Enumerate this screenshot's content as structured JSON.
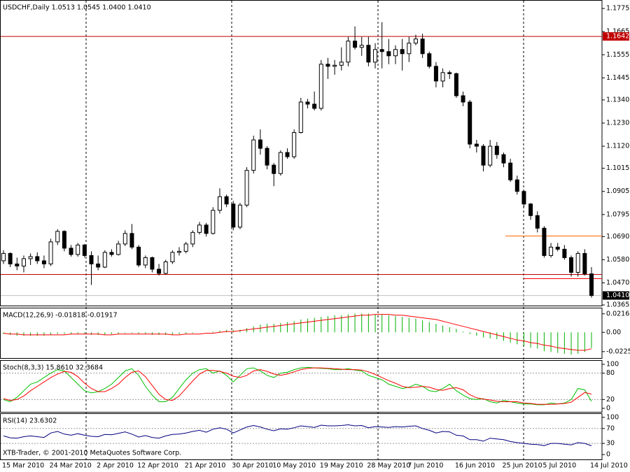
{
  "chart_data": [
    {
      "type": "candlestick",
      "title": "USDCHF,Daily 1.0513 1.0545 1.0400 1.0410",
      "categories": [
        "15 Mar 2010",
        null,
        null,
        null,
        null,
        null,
        null,
        "24 Mar 2010",
        null,
        null,
        null,
        null,
        null,
        null,
        "2 Apr 2010",
        null,
        null,
        null,
        null,
        null,
        "12 Apr 2010",
        null,
        null,
        null,
        null,
        null,
        null,
        "21 Apr 2010",
        null,
        null,
        null,
        null,
        null,
        null,
        "30 Apr 2010",
        null,
        null,
        null,
        null,
        null,
        "10 May 2010",
        null,
        null,
        null,
        null,
        null,
        null,
        "19 May 2010",
        null,
        null,
        null,
        null,
        null,
        null,
        "28 May 2010",
        null,
        null,
        null,
        null,
        null,
        "7 Jun 2010",
        null,
        null,
        null,
        null,
        null,
        null,
        "16 Jun 2010",
        null,
        null,
        null,
        null,
        null,
        null,
        "25 Jun 2010",
        null,
        null,
        null,
        null,
        null,
        "5 Jul 2010",
        null,
        null,
        null,
        null,
        null,
        null,
        "14 Jul 2010"
      ],
      "open": [
        1.0575,
        1.061,
        1.056,
        1.055,
        1.0585,
        1.0595,
        1.0575,
        1.056,
        1.0665,
        1.0715,
        1.0635,
        1.0605,
        1.065,
        1.06,
        1.056,
        1.0545,
        1.0615,
        1.0605,
        1.0655,
        1.0705,
        1.064,
        1.0555,
        1.059,
        1.0535,
        1.0515,
        1.057,
        1.0615,
        1.062,
        1.0655,
        1.071,
        1.0745,
        1.0705,
        1.0815,
        1.088,
        1.0845,
        1.0735,
        1.084,
        1.1005,
        1.115,
        1.111,
        1.103,
        1.099,
        1.109,
        1.107,
        1.1185,
        1.133,
        1.132,
        1.13,
        1.151,
        1.15,
        1.1505,
        1.152,
        1.162,
        1.159,
        1.16,
        1.152,
        1.158,
        1.157,
        1.155,
        1.158,
        1.156,
        1.161,
        1.163,
        1.156,
        1.15,
        1.143,
        1.147,
        1.1465,
        1.136,
        1.133,
        1.113,
        1.112,
        1.103,
        1.112,
        1.108,
        1.104,
        1.096,
        1.0905,
        1.0845,
        1.079,
        1.073,
        1.06,
        1.064,
        1.063,
        1.059,
        1.052,
        1.061,
        1.0513
      ],
      "high": [
        1.0625,
        1.0615,
        1.059,
        1.06,
        1.061,
        1.0615,
        1.06,
        1.068,
        1.0725,
        1.072,
        1.065,
        1.066,
        1.0655,
        1.062,
        1.06,
        1.0625,
        1.063,
        1.067,
        1.072,
        1.075,
        1.065,
        1.06,
        1.0595,
        1.056,
        1.058,
        1.0625,
        1.064,
        1.0665,
        1.072,
        1.076,
        1.0755,
        1.083,
        1.092,
        1.089,
        1.086,
        1.085,
        1.102,
        1.117,
        1.12,
        1.112,
        1.104,
        1.11,
        1.111,
        1.12,
        1.135,
        1.1345,
        1.138,
        1.153,
        1.154,
        1.153,
        1.159,
        1.164,
        1.169,
        1.164,
        1.164,
        1.161,
        1.171,
        1.163,
        1.16,
        1.163,
        1.164,
        1.165,
        1.1655,
        1.157,
        1.152,
        1.149,
        1.148,
        1.147,
        1.138,
        1.134,
        1.115,
        1.113,
        1.115,
        1.114,
        1.109,
        1.106,
        1.098,
        1.091,
        1.085,
        1.081,
        1.074,
        1.066,
        1.066,
        1.065,
        1.06,
        1.062,
        1.063,
        1.0545
      ],
      "low": [
        1.056,
        1.0545,
        1.053,
        1.052,
        1.0555,
        1.056,
        1.054,
        1.055,
        1.065,
        1.062,
        1.0595,
        1.0595,
        1.059,
        1.046,
        1.053,
        1.054,
        1.0595,
        1.06,
        1.0645,
        1.063,
        1.0545,
        1.054,
        1.052,
        1.0505,
        1.051,
        1.056,
        1.06,
        1.061,
        1.064,
        1.07,
        1.069,
        1.07,
        1.08,
        1.083,
        1.072,
        1.0725,
        1.083,
        1.099,
        1.108,
        1.101,
        1.093,
        1.098,
        1.106,
        1.106,
        1.118,
        1.13,
        1.129,
        1.129,
        1.144,
        1.146,
        1.148,
        1.15,
        1.158,
        1.155,
        1.15,
        1.149,
        1.149,
        1.151,
        1.151,
        1.148,
        1.152,
        1.16,
        1.154,
        1.149,
        1.14,
        1.14,
        1.144,
        1.135,
        1.131,
        1.111,
        1.109,
        1.1,
        1.102,
        1.106,
        1.102,
        1.095,
        1.089,
        1.083,
        1.077,
        1.071,
        1.059,
        1.059,
        1.062,
        1.058,
        1.05,
        1.05,
        1.0505,
        1.04
      ],
      "close": [
        1.061,
        1.056,
        1.055,
        1.0585,
        1.0595,
        1.0575,
        1.056,
        1.0665,
        1.0715,
        1.0635,
        1.0605,
        1.065,
        1.06,
        1.056,
        1.0545,
        1.0615,
        1.0605,
        1.0655,
        1.0705,
        1.064,
        1.0555,
        1.059,
        1.0535,
        1.0515,
        1.057,
        1.0615,
        1.062,
        1.0655,
        1.071,
        1.0745,
        1.0705,
        1.0815,
        1.088,
        1.0845,
        1.0735,
        1.084,
        1.1005,
        1.115,
        1.111,
        1.103,
        1.099,
        1.109,
        1.107,
        1.1185,
        1.133,
        1.132,
        1.13,
        1.151,
        1.15,
        1.1505,
        1.152,
        1.162,
        1.159,
        1.16,
        1.152,
        1.158,
        1.157,
        1.155,
        1.158,
        1.156,
        1.161,
        1.163,
        1.156,
        1.15,
        1.143,
        1.147,
        1.1465,
        1.136,
        1.133,
        1.113,
        1.112,
        1.103,
        1.112,
        1.108,
        1.104,
        1.096,
        1.0905,
        1.0845,
        1.079,
        1.073,
        1.06,
        1.064,
        1.063,
        1.059,
        1.052,
        1.061,
        1.0513,
        1.041
      ],
      "ylim": [
        1.0362,
        1.1812
      ],
      "yticks": [
        1.1775,
        1.1665,
        1.1555,
        1.1445,
        {
          "value": 1.134,
          "label": "1.1340"
        },
        {
          "value": 1.123,
          "label": "1.1230"
        },
        {
          "value": 1.112,
          "label": "1.1120"
        },
        1.1015,
        1.0905,
        1.0795,
        {
          "value": 1.069,
          "label": "1.0690"
        },
        {
          "value": 1.058,
          "label": "1.0580"
        },
        {
          "value": 1.047,
          "label": "1.0470"
        },
        1.0365
      ],
      "levels": [
        {
          "value": 1.1642,
          "color": "#c00000"
        },
        {
          "value": 1.051,
          "color": "#c00000"
        },
        {
          "value": 1.0693,
          "color": "#ff6600"
        },
        {
          "value": 1.049,
          "color": "#ff0000"
        }
      ],
      "last_price": {
        "value": 1.041,
        "label": "1.0410"
      },
      "footer": "XTB-Trader, © 2001-2010 MetaQuotes Software Corp."
    },
    {
      "type": "macd",
      "title": "MACD(12,26,9) -0.01818 -0.01917",
      "series": [
        {
          "color": "#00b000",
          "style": "bars",
          "values": [
            -0.002,
            -0.003,
            -0.004,
            -0.004,
            -0.004,
            -0.004,
            -0.004,
            -0.003,
            -0.002,
            -0.002,
            -0.002,
            -0.002,
            -0.002,
            -0.003,
            -0.003,
            -0.003,
            -0.002,
            -0.002,
            -0.001,
            -0.001,
            -0.002,
            -0.002,
            -0.003,
            -0.003,
            -0.003,
            -0.003,
            -0.002,
            -0.002,
            -0.001,
            0.0,
            0.0,
            0.001,
            0.002,
            0.003,
            0.003,
            0.003,
            0.005,
            0.007,
            0.009,
            0.01,
            0.01,
            0.011,
            0.012,
            0.013,
            0.015,
            0.016,
            0.017,
            0.018,
            0.019,
            0.02,
            0.02,
            0.021,
            0.022,
            0.022,
            0.022,
            0.021,
            0.021,
            0.02,
            0.019,
            0.018,
            0.017,
            0.016,
            0.014,
            0.012,
            0.01,
            0.008,
            0.006,
            0.004,
            0.001,
            -0.002,
            -0.004,
            -0.006,
            -0.007,
            -0.008,
            -0.01,
            -0.012,
            -0.014,
            -0.016,
            -0.018,
            -0.019,
            -0.022,
            -0.023,
            -0.024,
            -0.025,
            -0.026,
            -0.025,
            -0.023,
            -0.01818
          ]
        },
        {
          "color": "#ff0000",
          "style": "line",
          "values": [
            -0.001,
            -0.002,
            -0.002,
            -0.003,
            -0.003,
            -0.003,
            -0.003,
            -0.003,
            -0.003,
            -0.003,
            -0.002,
            -0.002,
            -0.002,
            -0.002,
            -0.002,
            -0.003,
            -0.003,
            -0.002,
            -0.002,
            -0.002,
            -0.002,
            -0.002,
            -0.002,
            -0.002,
            -0.002,
            -0.003,
            -0.003,
            -0.002,
            -0.002,
            -0.002,
            -0.001,
            -0.001,
            0.0,
            0.001,
            0.001,
            0.002,
            0.003,
            0.004,
            0.005,
            0.006,
            0.007,
            0.008,
            0.009,
            0.01,
            0.011,
            0.012,
            0.013,
            0.014,
            0.015,
            0.016,
            0.017,
            0.018,
            0.019,
            0.02,
            0.02,
            0.021,
            0.021,
            0.021,
            0.02,
            0.02,
            0.019,
            0.018,
            0.017,
            0.016,
            0.015,
            0.013,
            0.011,
            0.009,
            0.007,
            0.005,
            0.003,
            0.001,
            -0.001,
            -0.003,
            -0.005,
            -0.007,
            -0.009,
            -0.01,
            -0.012,
            -0.013,
            -0.015,
            -0.016,
            -0.018,
            -0.019,
            -0.02,
            -0.021,
            -0.021,
            -0.01917
          ]
        }
      ],
      "ylim": [
        -0.03,
        0.028
      ],
      "yticks": [
        0.02165,
        {
          "value": 0,
          "label": "0.00"
        },
        -0.0225
      ]
    },
    {
      "type": "stochastic",
      "title": "Stoch(8,3,3) 15.8610 32.3684",
      "series": [
        {
          "color": "#00c000",
          "values": [
            20,
            15,
            25,
            40,
            55,
            60,
            70,
            80,
            88,
            85,
            70,
            55,
            40,
            35,
            38,
            45,
            55,
            70,
            85,
            90,
            75,
            50,
            30,
            15,
            15,
            25,
            45,
            65,
            80,
            88,
            90,
            80,
            85,
            75,
            60,
            75,
            90,
            92,
            85,
            75,
            70,
            80,
            82,
            88,
            92,
            93,
            92,
            91,
            90,
            88,
            88,
            90,
            87,
            85,
            75,
            70,
            65,
            55,
            50,
            45,
            48,
            55,
            50,
            40,
            38,
            45,
            55,
            40,
            30,
            22,
            20,
            22,
            15,
            12,
            18,
            15,
            12,
            10,
            10,
            8,
            8,
            12,
            10,
            12,
            20,
            45,
            42,
            15.861
          ]
        },
        {
          "color": "#ff0000",
          "values": [
            22,
            18,
            20,
            28,
            40,
            50,
            60,
            70,
            78,
            84,
            82,
            72,
            57,
            45,
            38,
            38,
            45,
            55,
            70,
            82,
            85,
            72,
            52,
            32,
            20,
            18,
            28,
            45,
            62,
            78,
            86,
            86,
            84,
            80,
            73,
            70,
            75,
            85,
            88,
            84,
            78,
            75,
            78,
            83,
            88,
            91,
            92,
            92,
            91,
            90,
            89,
            88,
            88,
            87,
            83,
            77,
            70,
            63,
            57,
            50,
            47,
            48,
            50,
            48,
            43,
            41,
            45,
            47,
            42,
            31,
            24,
            21,
            19,
            16,
            15,
            15,
            15,
            12,
            11,
            9,
            9,
            9,
            10,
            11,
            14,
            25,
            36,
            32.3684
          ]
        }
      ],
      "ylim": [
        -8,
        108
      ],
      "yticks": [
        100,
        80,
        20,
        0
      ],
      "levels": [
        80,
        20
      ]
    },
    {
      "type": "line",
      "title": "RSI(14) 23.6302",
      "color": "#000080",
      "values": [
        50,
        45,
        44,
        48,
        50,
        48,
        46,
        58,
        62,
        55,
        52,
        56,
        52,
        49,
        48,
        54,
        53,
        57,
        61,
        55,
        47,
        51,
        46,
        44,
        50,
        54,
        55,
        58,
        62,
        65,
        60,
        68,
        72,
        68,
        58,
        66,
        74,
        78,
        74,
        68,
        64,
        69,
        68,
        72,
        77,
        75,
        73,
        79,
        77,
        77,
        78,
        80,
        77,
        78,
        72,
        75,
        74,
        73,
        75,
        74,
        76,
        77,
        70,
        65,
        58,
        62,
        61,
        52,
        50,
        40,
        40,
        36,
        44,
        42,
        40,
        35,
        32,
        30,
        28,
        27,
        24,
        30,
        30,
        28,
        26,
        32,
        30,
        23.6302
      ],
      "ylim": [
        -13,
        109
      ],
      "yticks": [
        100,
        70,
        30,
        0
      ],
      "levels": [
        70,
        30
      ]
    }
  ]
}
